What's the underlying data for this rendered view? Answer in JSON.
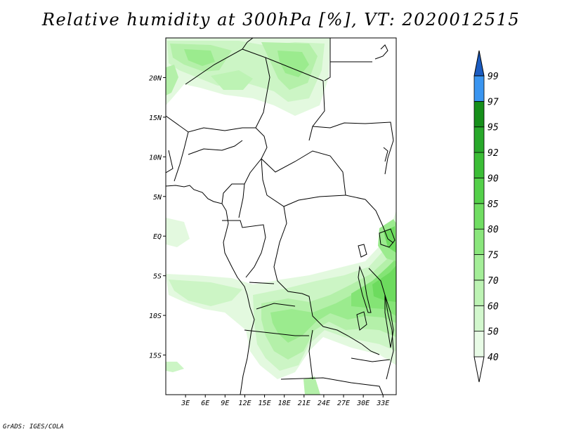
{
  "title": "Relative humidity at 300hPa [%], VT: 2020012515",
  "credit": "GrADS: IGES/COLA",
  "map": {
    "lon_range": [
      0,
      35
    ],
    "lat_range": [
      -20,
      25
    ],
    "lat_labels": [
      {
        "lat": 20,
        "text": "20N"
      },
      {
        "lat": 15,
        "text": "15N"
      },
      {
        "lat": 10,
        "text": "10N"
      },
      {
        "lat": 5,
        "text": "5N"
      },
      {
        "lat": 0,
        "text": "EQ"
      },
      {
        "lat": -5,
        "text": "5S"
      },
      {
        "lat": -10,
        "text": "10S"
      },
      {
        "lat": -15,
        "text": "15S"
      }
    ],
    "lon_labels": [
      {
        "lon": 3,
        "text": "3E"
      },
      {
        "lon": 6,
        "text": "6E"
      },
      {
        "lon": 9,
        "text": "9E"
      },
      {
        "lon": 12,
        "text": "12E"
      },
      {
        "lon": 15,
        "text": "15E"
      },
      {
        "lon": 18,
        "text": "18E"
      },
      {
        "lon": 21,
        "text": "21E"
      },
      {
        "lon": 24,
        "text": "24E"
      },
      {
        "lon": 27,
        "text": "27E"
      },
      {
        "lon": 30,
        "text": "30E"
      },
      {
        "lon": 33,
        "text": "33E"
      }
    ]
  },
  "colorbar": {
    "levels": [
      "40",
      "50",
      "60",
      "70",
      "75",
      "80",
      "85",
      "90",
      "92",
      "95",
      "97",
      "99"
    ],
    "colors": [
      "#e8fbe6",
      "#d2f7cd",
      "#bdf3b4",
      "#a4ee98",
      "#8ae67c",
      "#70dd62",
      "#54d04a",
      "#3bbd36",
      "#28a82a",
      "#168f1a",
      "#3a95f0",
      "#2373d6",
      "#1b5cc1"
    ]
  }
}
